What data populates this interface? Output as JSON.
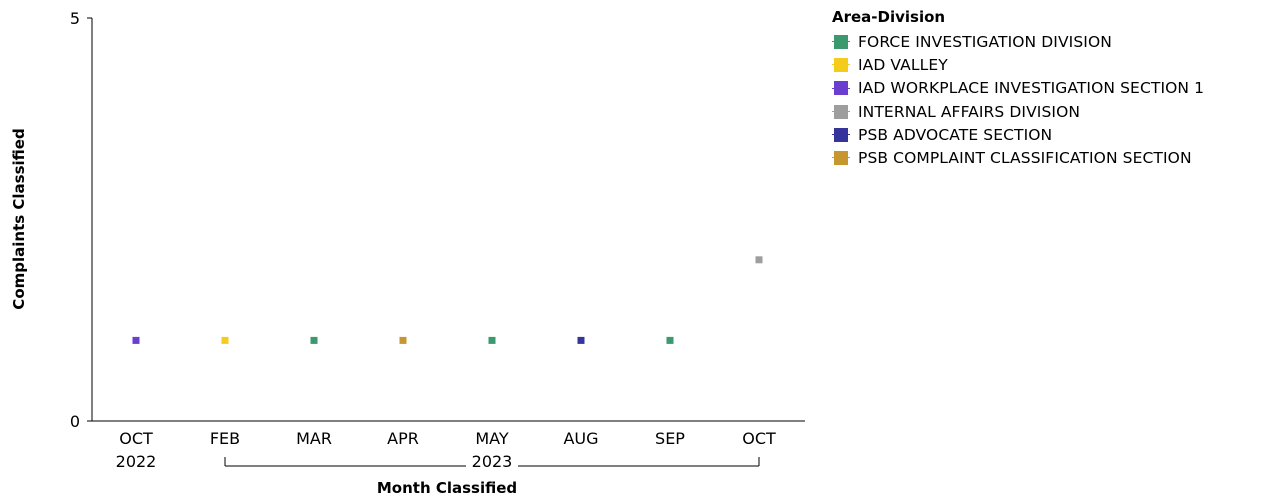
{
  "chart_data": {
    "type": "scatter",
    "xlabel": "Month Classified",
    "ylabel": "Complaints Classified",
    "ylim": [
      0,
      5
    ],
    "y_ticks": [
      "0",
      "5"
    ],
    "categories": [
      {
        "month": "OCT",
        "year": "2022"
      },
      {
        "month": "FEB",
        "year": ""
      },
      {
        "month": "MAR",
        "year": ""
      },
      {
        "month": "APR",
        "year": ""
      },
      {
        "month": "MAY",
        "year": "2023"
      },
      {
        "month": "AUG",
        "year": ""
      },
      {
        "month": "SEP",
        "year": ""
      },
      {
        "month": "OCT",
        "year": ""
      }
    ],
    "year_groups": [
      {
        "label": "2023",
        "from": 1,
        "to": 7
      }
    ],
    "legend_title": "Area-Division",
    "legend_position": "right",
    "series": [
      {
        "name": "FORCE INVESTIGATION DIVISION",
        "color": "#3a9a6e",
        "points": [
          {
            "x": 2,
            "y": 1
          },
          {
            "x": 4,
            "y": 1
          },
          {
            "x": 6,
            "y": 1
          }
        ]
      },
      {
        "name": "IAD VALLEY",
        "color": "#f5cc1c",
        "points": [
          {
            "x": 1,
            "y": 1
          }
        ]
      },
      {
        "name": "IAD WORKPLACE INVESTIGATION SECTION 1",
        "color": "#6a3fcf",
        "points": [
          {
            "x": 0,
            "y": 1
          }
        ]
      },
      {
        "name": "INTERNAL AFFAIRS DIVISION",
        "color": "#9e9e9e",
        "points": [
          {
            "x": 7,
            "y": 2
          }
        ]
      },
      {
        "name": "PSB ADVOCATE SECTION",
        "color": "#35349a",
        "points": [
          {
            "x": 5,
            "y": 1
          }
        ]
      },
      {
        "name": "PSB COMPLAINT CLASSIFICATION SECTION",
        "color": "#c7962e",
        "points": [
          {
            "x": 3,
            "y": 1
          }
        ]
      }
    ]
  }
}
